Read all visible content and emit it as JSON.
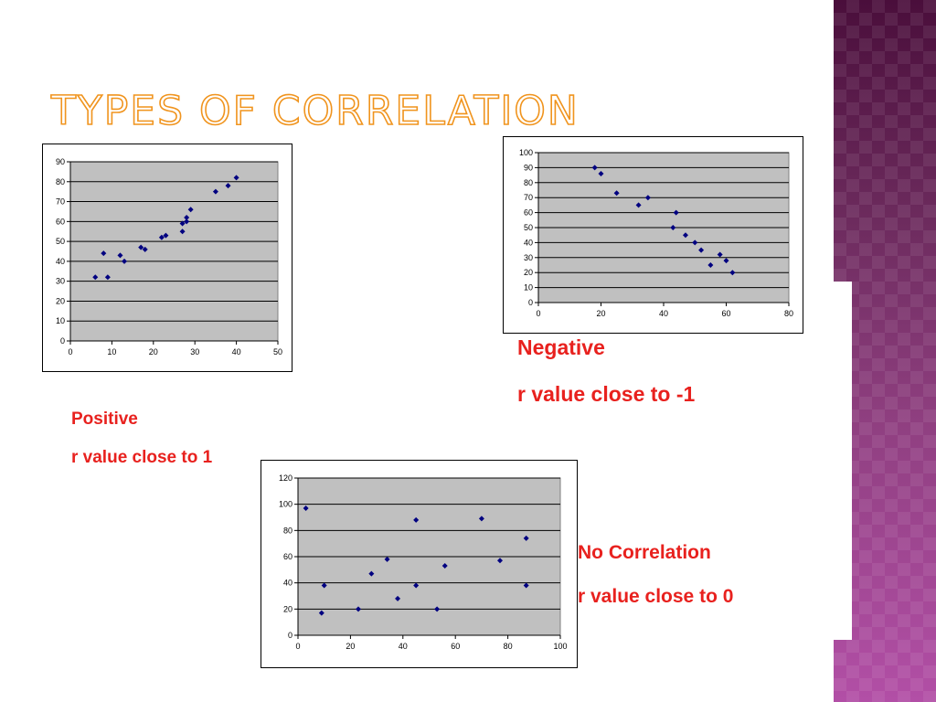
{
  "slide": {
    "title": "TYPES OF CORRELATION"
  },
  "colors": {
    "title_fill": "#ffffff",
    "title_outline": "#f0941e",
    "caption": "#e8211e",
    "plot_bg": "#c0c0c0",
    "marker": "#000080",
    "side_band": "#7a3470"
  },
  "captions": {
    "positive": {
      "heading": "Positive",
      "detail": "r value close to 1"
    },
    "negative": {
      "heading": "Negative",
      "detail": "r value close to -1"
    },
    "none": {
      "heading": "No Correlation",
      "detail": "r value close to 0"
    }
  },
  "chart_data": [
    {
      "type": "scatter",
      "id": "positive",
      "xlim": [
        0,
        50
      ],
      "ylim": [
        0,
        90
      ],
      "xticks": [
        0,
        10,
        20,
        30,
        40,
        50
      ],
      "yticks": [
        0,
        10,
        20,
        30,
        40,
        50,
        60,
        70,
        80,
        90
      ],
      "grid": true,
      "points": [
        [
          6,
          32
        ],
        [
          8,
          44
        ],
        [
          9,
          32
        ],
        [
          12,
          43
        ],
        [
          13,
          40
        ],
        [
          17,
          47
        ],
        [
          18,
          46
        ],
        [
          22,
          52
        ],
        [
          23,
          53
        ],
        [
          27,
          55
        ],
        [
          27,
          59
        ],
        [
          28,
          60
        ],
        [
          28,
          62
        ],
        [
          29,
          66
        ],
        [
          35,
          75
        ],
        [
          38,
          78
        ],
        [
          40,
          82
        ]
      ]
    },
    {
      "type": "scatter",
      "id": "negative",
      "xlim": [
        0,
        80
      ],
      "ylim": [
        0,
        100
      ],
      "xticks": [
        0,
        20,
        40,
        60,
        80
      ],
      "yticks": [
        0,
        10,
        20,
        30,
        40,
        50,
        60,
        70,
        80,
        90,
        100
      ],
      "grid": true,
      "points": [
        [
          18,
          90
        ],
        [
          20,
          86
        ],
        [
          25,
          73
        ],
        [
          32,
          65
        ],
        [
          35,
          70
        ],
        [
          43,
          50
        ],
        [
          44,
          60
        ],
        [
          47,
          45
        ],
        [
          50,
          40
        ],
        [
          52,
          35
        ],
        [
          55,
          25
        ],
        [
          58,
          32
        ],
        [
          60,
          28
        ],
        [
          62,
          20
        ]
      ]
    },
    {
      "type": "scatter",
      "id": "none",
      "xlim": [
        0,
        100
      ],
      "ylim": [
        0,
        120
      ],
      "xticks": [
        0,
        20,
        40,
        60,
        80,
        100
      ],
      "yticks": [
        0,
        20,
        40,
        60,
        80,
        100,
        120
      ],
      "grid": true,
      "points": [
        [
          3,
          97
        ],
        [
          9,
          17
        ],
        [
          10,
          38
        ],
        [
          23,
          20
        ],
        [
          28,
          47
        ],
        [
          34,
          58
        ],
        [
          38,
          28
        ],
        [
          45,
          38
        ],
        [
          45,
          88
        ],
        [
          53,
          20
        ],
        [
          56,
          53
        ],
        [
          70,
          89
        ],
        [
          77,
          57
        ],
        [
          87,
          74
        ],
        [
          87,
          38
        ]
      ]
    }
  ]
}
